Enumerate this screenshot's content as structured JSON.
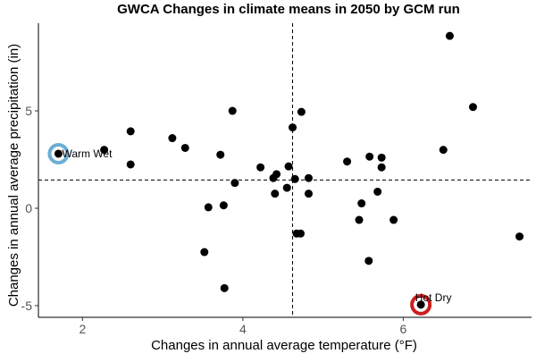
{
  "chart_data": {
    "type": "scatter",
    "title": "GWCA Changes in climate means in 2050 by GCM run",
    "xlabel": "Changes in annual average temperature (°F)",
    "ylabel": "Changes in annual average precipitation (in)",
    "xlim": [
      1.45,
      7.6
    ],
    "ylim": [
      -5.6,
      9.5
    ],
    "xticks": [
      2,
      4,
      6
    ],
    "yticks": [
      -5,
      0,
      5
    ],
    "grid": false,
    "reference_lines": {
      "x": 4.62,
      "y": 1.45
    },
    "point_color": "#000000",
    "points": [
      {
        "x": 1.7,
        "y": 2.8
      },
      {
        "x": 2.27,
        "y": 3.0
      },
      {
        "x": 2.6,
        "y": 3.95
      },
      {
        "x": 2.6,
        "y": 2.25
      },
      {
        "x": 3.12,
        "y": 3.6
      },
      {
        "x": 3.28,
        "y": 3.1
      },
      {
        "x": 3.52,
        "y": -2.25
      },
      {
        "x": 3.57,
        "y": 0.05
      },
      {
        "x": 3.72,
        "y": 2.75
      },
      {
        "x": 3.76,
        "y": 0.15
      },
      {
        "x": 3.77,
        "y": -4.1
      },
      {
        "x": 3.87,
        "y": 5.0
      },
      {
        "x": 3.9,
        "y": 1.3
      },
      {
        "x": 4.22,
        "y": 2.1
      },
      {
        "x": 4.38,
        "y": 1.55
      },
      {
        "x": 4.4,
        "y": 0.75
      },
      {
        "x": 4.42,
        "y": 1.75
      },
      {
        "x": 4.55,
        "y": 1.05
      },
      {
        "x": 4.57,
        "y": 2.15
      },
      {
        "x": 4.62,
        "y": 4.15
      },
      {
        "x": 4.65,
        "y": 1.5
      },
      {
        "x": 4.67,
        "y": -1.3
      },
      {
        "x": 4.72,
        "y": -1.3
      },
      {
        "x": 4.73,
        "y": 4.95
      },
      {
        "x": 4.82,
        "y": 0.75
      },
      {
        "x": 4.82,
        "y": 1.55
      },
      {
        "x": 5.3,
        "y": 2.4
      },
      {
        "x": 5.45,
        "y": -0.6
      },
      {
        "x": 5.48,
        "y": 0.25
      },
      {
        "x": 5.57,
        "y": -2.7
      },
      {
        "x": 5.58,
        "y": 2.65
      },
      {
        "x": 5.68,
        "y": 0.85
      },
      {
        "x": 5.73,
        "y": 2.6
      },
      {
        "x": 5.73,
        "y": 2.1
      },
      {
        "x": 5.88,
        "y": -0.6
      },
      {
        "x": 6.22,
        "y": -4.95
      },
      {
        "x": 6.5,
        "y": 3.0
      },
      {
        "x": 6.58,
        "y": 8.85
      },
      {
        "x": 6.87,
        "y": 5.2
      },
      {
        "x": 7.45,
        "y": -1.45
      }
    ],
    "highlights": [
      {
        "label": "Warm Wet",
        "x": 1.7,
        "y": 2.8,
        "color": "#6baed6"
      },
      {
        "label": "Hot Dry",
        "x": 6.22,
        "y": -4.95,
        "color": "#cc1f1f"
      }
    ]
  }
}
